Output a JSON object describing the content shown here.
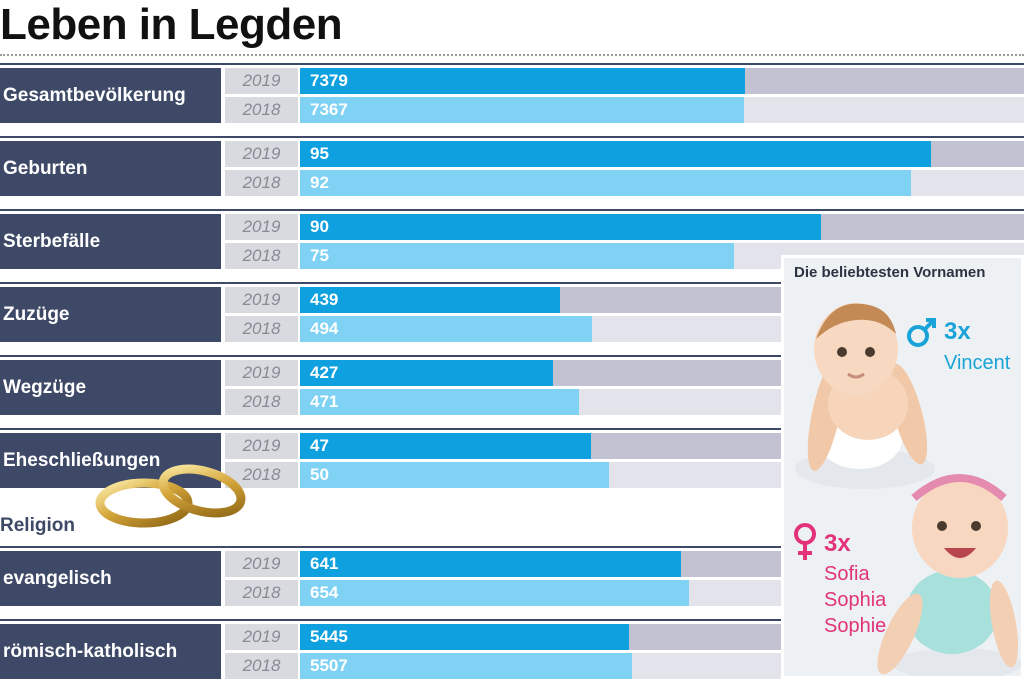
{
  "page": {
    "title": "Leben in Legden"
  },
  "chart_data": {
    "type": "bar",
    "orientation": "horizontal",
    "title": "Leben in Legden",
    "series": [
      {
        "name": "2019",
        "color": "#0fa0df"
      },
      {
        "name": "2018",
        "color": "#7fd2f4"
      }
    ],
    "groups": [
      {
        "category": "Gesamtbevölkerung",
        "y2019": "2019",
        "y2018": "2018",
        "v2019": 7379,
        "v2018": 7367,
        "l2019": "7379",
        "l2018": "7367",
        "max": 12000
      },
      {
        "category": "Geburten",
        "y2019": "2019",
        "y2018": "2018",
        "v2019": 95,
        "v2018": 92,
        "l2019": "95",
        "l2018": "92",
        "max": 109
      },
      {
        "category": "Sterbefälle",
        "y2019": "2019",
        "y2018": "2018",
        "v2019": 90,
        "v2018": 75,
        "l2019": "90",
        "l2018": "75",
        "max": 125
      },
      {
        "category": "Zuzüge",
        "y2019": "2019",
        "y2018": "2018",
        "v2019": 439,
        "v2018": 494,
        "l2019": "439",
        "l2018": "494",
        "max": 1224
      },
      {
        "category": "Wegzüge",
        "y2019": "2019",
        "y2018": "2018",
        "v2019": 427,
        "v2018": 471,
        "l2019": "427",
        "l2018": "471",
        "max": 1224
      },
      {
        "category": "Eheschließungen",
        "y2019": "2019",
        "y2018": "2018",
        "v2019": 47,
        "v2018": 50,
        "l2019": "47",
        "l2018": "50",
        "max": 117
      },
      {
        "category": "evangelisch",
        "y2019": "2019",
        "y2018": "2018",
        "v2019": 641,
        "v2018": 654,
        "l2019": "641",
        "l2018": "654",
        "max": 1218
      },
      {
        "category": "römisch-katholisch",
        "y2019": "2019",
        "y2018": "2018",
        "v2019": 5445,
        "v2018": 5507,
        "l2019": "5445",
        "l2018": "5507",
        "max": 12000
      }
    ],
    "section_label": "Religion"
  },
  "names_box": {
    "title": "Die beliebtesten Vornamen",
    "boy": {
      "count": "3x",
      "names": [
        "Vincent"
      ]
    },
    "girl": {
      "count": "3x",
      "names": [
        "Sofia",
        "Sophia",
        "Sophie"
      ]
    }
  }
}
